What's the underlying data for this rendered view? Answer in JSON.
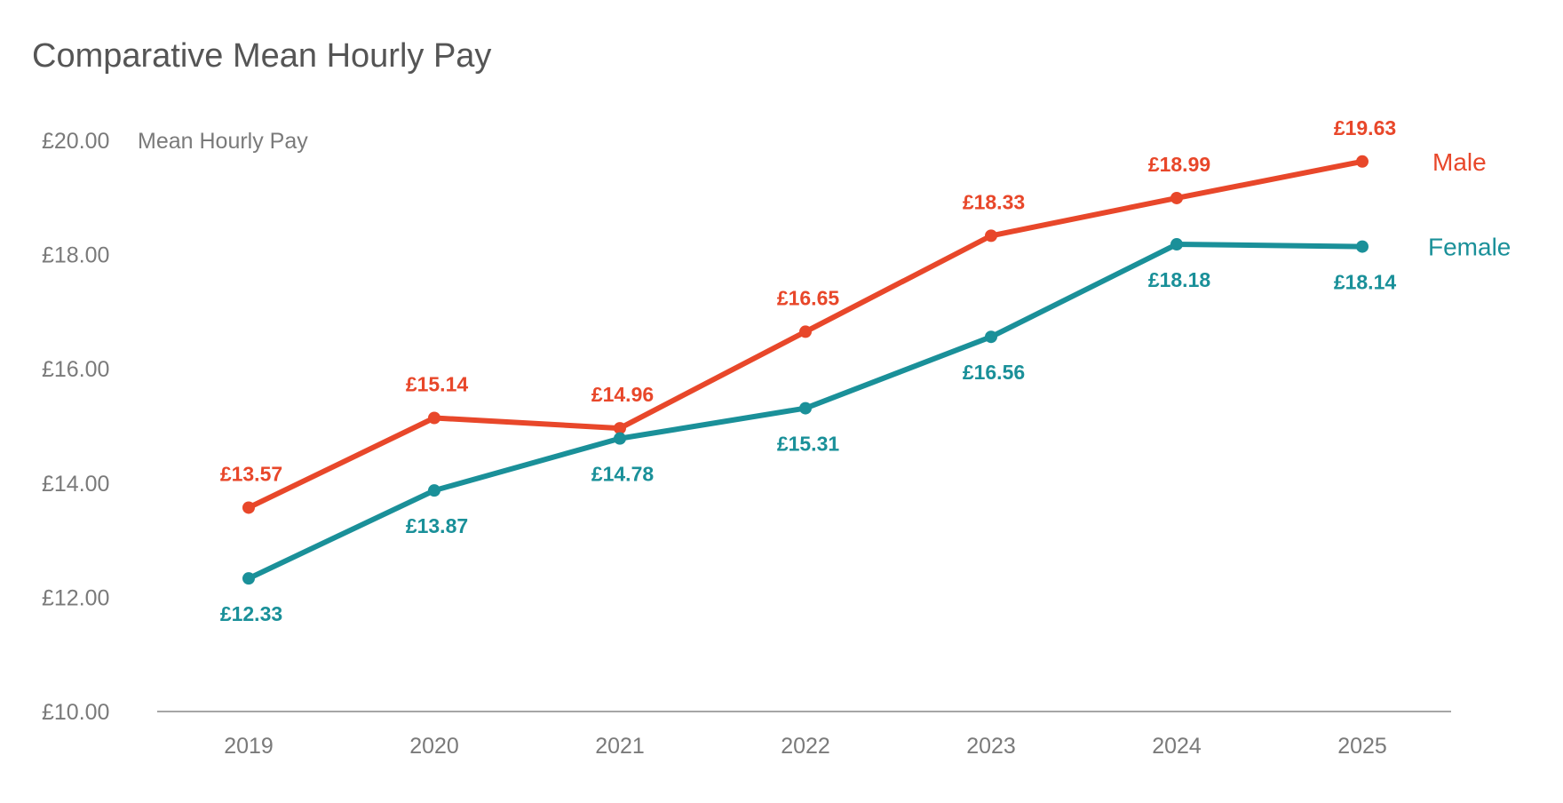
{
  "chart_data": {
    "type": "line",
    "title": "Comparative Mean Hourly Pay",
    "ylabel": "Mean Hourly Pay",
    "xlabel": "",
    "categories": [
      "2019",
      "2020",
      "2021",
      "2022",
      "2023",
      "2024",
      "2025"
    ],
    "y_ticks": [
      "£10.00",
      "£12.00",
      "£14.00",
      "£16.00",
      "£18.00",
      "£20.00"
    ],
    "ylim": [
      10,
      20
    ],
    "grid": false,
    "legend": "right, inline at line ends",
    "series": [
      {
        "name": "Male",
        "color": "#E8472A",
        "values": [
          13.57,
          15.14,
          14.96,
          16.65,
          18.33,
          18.99,
          19.63
        ],
        "labels": [
          "£13.57",
          "£15.14",
          "£14.96",
          "£16.65",
          "£18.33",
          "£18.99",
          "£19.63"
        ]
      },
      {
        "name": "Female",
        "color": "#1A9099",
        "values": [
          12.33,
          13.87,
          14.78,
          15.31,
          16.56,
          18.18,
          18.14
        ],
        "labels": [
          "£12.33",
          "£13.87",
          "£14.78",
          "£15.31",
          "£16.56",
          "£18.18",
          "£18.14"
        ]
      }
    ]
  }
}
